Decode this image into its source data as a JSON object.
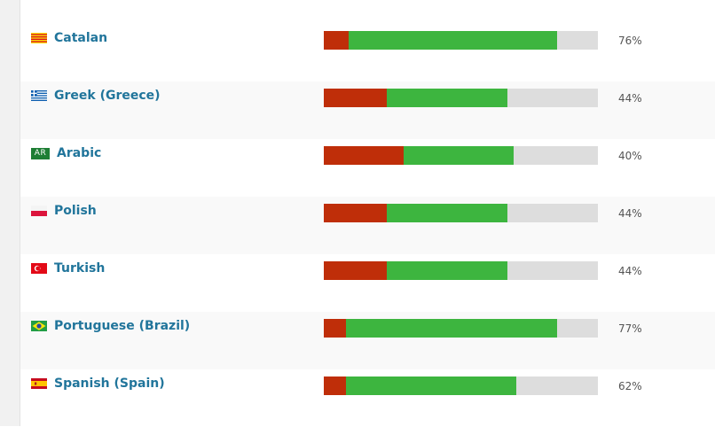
{
  "colors": {
    "link": "#21759b",
    "fuzzy": "#bf2e09",
    "approved": "#3db53f",
    "untranslated": "#dddddd"
  },
  "languages": [
    {
      "name": "Catalan",
      "flag_icon": "catalan-flag-icon",
      "fuzzy": 0.09,
      "approved": 0.76,
      "percent": "76%"
    },
    {
      "name": "Greek (Greece)",
      "flag_icon": "greece-flag-icon",
      "fuzzy": 0.23,
      "approved": 0.44,
      "percent": "44%"
    },
    {
      "name": "Arabic",
      "flag_icon": "arabic-flag-icon",
      "flag_text": "AR",
      "fuzzy": 0.29,
      "approved": 0.4,
      "percent": "40%"
    },
    {
      "name": "Polish",
      "flag_icon": "poland-flag-icon",
      "fuzzy": 0.23,
      "approved": 0.44,
      "percent": "44%"
    },
    {
      "name": "Turkish",
      "flag_icon": "turkey-flag-icon",
      "fuzzy": 0.23,
      "approved": 0.44,
      "percent": "44%"
    },
    {
      "name": "Portuguese (Brazil)",
      "flag_icon": "brazil-flag-icon",
      "fuzzy": 0.08,
      "approved": 0.77,
      "percent": "77%"
    },
    {
      "name": "Spanish (Spain)",
      "flag_icon": "spain-flag-icon",
      "fuzzy": 0.08,
      "approved": 0.62,
      "percent": "62%"
    }
  ]
}
